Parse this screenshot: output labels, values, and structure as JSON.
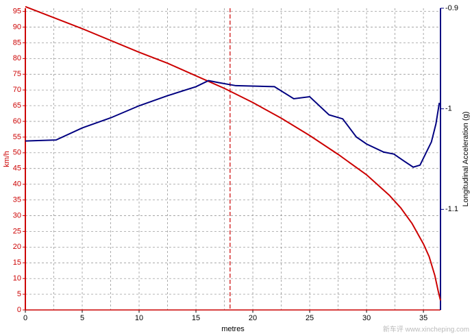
{
  "chart_data": {
    "type": "line",
    "x_label": "metres",
    "y_label": "km/h",
    "y2_label": "Longitudinal Acceleration (g)",
    "xlim": [
      0,
      36.5
    ],
    "xticks": [
      0,
      5,
      10,
      15,
      20,
      25,
      30,
      35
    ],
    "ylim": [
      0,
      96
    ],
    "yticks": [
      0,
      5,
      10,
      15,
      20,
      25,
      30,
      35,
      40,
      45,
      50,
      55,
      60,
      65,
      70,
      75,
      80,
      85,
      90,
      95
    ],
    "y2lim": [
      -1.2,
      -0.9
    ],
    "y2ticks": [
      -0.9,
      -1,
      -1.1
    ],
    "grid": true,
    "cursor_x": 18,
    "cursor_color": "#cc0000",
    "watermark": "新车评 www.xincheping.com",
    "series": [
      {
        "color": "#cc0000",
        "axis": "y",
        "x": [
          0,
          5,
          10,
          12.5,
          15,
          17.5,
          20,
          22.5,
          25,
          27.5,
          30,
          32,
          33,
          34,
          35,
          35.5,
          36,
          36.3,
          36.5
        ],
        "values": [
          96.5,
          89.5,
          82,
          78.5,
          74.5,
          70.5,
          66,
          61,
          55.5,
          49.5,
          43,
          36.5,
          32.5,
          27.5,
          21,
          17,
          11,
          6,
          3
        ]
      },
      {
        "color": "#000080",
        "axis": "y2",
        "x": [
          0,
          2.7,
          5,
          7.5,
          10,
          12.5,
          15,
          16.1,
          17,
          18.5,
          21.9,
          23.6,
          25,
          26.7,
          27.9,
          29.1,
          30,
          31.5,
          32.4,
          33.3,
          34.1,
          34.7,
          35.7,
          36.1,
          36.4
        ],
        "values": [
          -1.032,
          -1.031,
          -1.019,
          -1.009,
          -0.997,
          -0.987,
          -0.978,
          -0.972,
          -0.974,
          -0.977,
          -0.978,
          -0.99,
          -0.988,
          -1.006,
          -1.01,
          -1.028,
          -1.035,
          -1.043,
          -1.045,
          -1.052,
          -1.058,
          -1.056,
          -1.033,
          -1.015,
          -0.994
        ]
      }
    ]
  }
}
